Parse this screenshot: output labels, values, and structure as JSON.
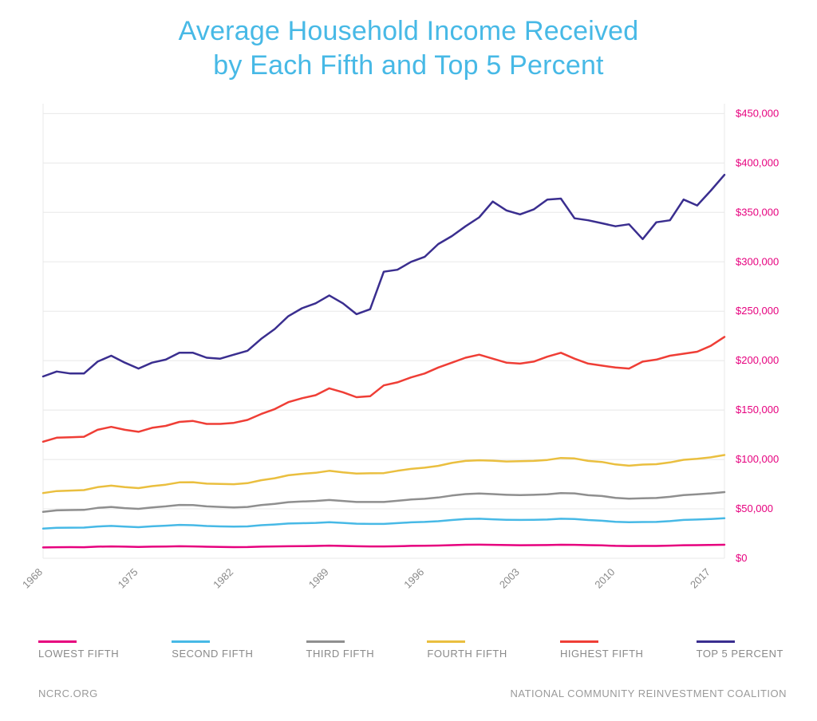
{
  "title_line1": "Average Household Income Received",
  "title_line2": "by Each Fifth and Top 5 Percent",
  "title_color": "#47b9e6",
  "footer_left": "NCRC.ORG",
  "footer_right": "NATIONAL COMMUNITY REINVESTMENT COALITION",
  "chart": {
    "type": "line",
    "background_color": "#ffffff",
    "grid_color": "#e8e8e8",
    "axis_label_color": "#8a8a8a",
    "ytick_color": "#e6007e",
    "title_fontsize": 34,
    "axis_fontsize": 13,
    "line_width": 2.5,
    "x": {
      "min": 1968,
      "max": 2018,
      "ticks": [
        1968,
        1975,
        1982,
        1989,
        1996,
        2003,
        2010,
        2017
      ],
      "tick_labels": [
        "1968",
        "1975",
        "1982",
        "1989",
        "1996",
        "2003",
        "2010",
        "2017"
      ],
      "tick_rotation": -45
    },
    "y": {
      "min": 0,
      "max": 460000,
      "ticks": [
        0,
        50000,
        100000,
        150000,
        200000,
        250000,
        300000,
        350000,
        400000,
        450000
      ],
      "tick_labels": [
        "$0",
        "$50,000",
        "$100,000",
        "$150,000",
        "$200,000",
        "$250,000",
        "$300,000",
        "$350,000",
        "$400,000",
        "$450,000"
      ]
    },
    "years": [
      1968,
      1969,
      1970,
      1971,
      1972,
      1973,
      1974,
      1975,
      1976,
      1977,
      1978,
      1979,
      1980,
      1981,
      1982,
      1983,
      1984,
      1985,
      1986,
      1987,
      1988,
      1989,
      1990,
      1991,
      1992,
      1993,
      1994,
      1995,
      1996,
      1997,
      1998,
      1999,
      2000,
      2001,
      2002,
      2003,
      2004,
      2005,
      2006,
      2007,
      2008,
      2009,
      2010,
      2011,
      2012,
      2013,
      2014,
      2015,
      2016,
      2017,
      2018
    ],
    "series": [
      {
        "id": "lowest_fifth",
        "label": "LOWEST FIFTH",
        "color": "#e6007e",
        "values": [
          11000,
          11200,
          11300,
          11200,
          11800,
          12000,
          11800,
          11500,
          11800,
          11900,
          12200,
          12000,
          11700,
          11500,
          11300,
          11400,
          11800,
          12000,
          12200,
          12300,
          12500,
          12800,
          12500,
          12200,
          12000,
          12000,
          12200,
          12600,
          12700,
          12900,
          13300,
          13700,
          13800,
          13600,
          13400,
          13200,
          13300,
          13400,
          13700,
          13600,
          13300,
          13100,
          12600,
          12400,
          12500,
          12500,
          12800,
          13200,
          13300,
          13500,
          13700
        ]
      },
      {
        "id": "second_fifth",
        "label": "SECOND FIFTH",
        "color": "#47b9e6",
        "values": [
          30000,
          30800,
          31000,
          31100,
          32200,
          32800,
          32000,
          31500,
          32400,
          33000,
          33800,
          33500,
          32700,
          32300,
          32000,
          32300,
          33500,
          34200,
          35200,
          35500,
          35800,
          36500,
          35800,
          35000,
          34800,
          34800,
          35600,
          36400,
          36800,
          37500,
          38700,
          39700,
          40000,
          39500,
          39000,
          38800,
          39000,
          39200,
          40000,
          39800,
          38700,
          38000,
          37000,
          36500,
          36700,
          36800,
          37600,
          38800,
          39200,
          39800,
          40500
        ]
      },
      {
        "id": "third_fifth",
        "label": "THIRD FIFTH",
        "color": "#8f8f8f",
        "values": [
          47000,
          48500,
          48800,
          49000,
          51000,
          52000,
          50800,
          50000,
          51500,
          52500,
          54000,
          53800,
          52500,
          52000,
          51500,
          52000,
          53800,
          55000,
          56800,
          57500,
          58000,
          59000,
          58000,
          57000,
          57000,
          57000,
          58200,
          59500,
          60200,
          61500,
          63500,
          65000,
          65500,
          65000,
          64200,
          64000,
          64200,
          64700,
          66000,
          65700,
          63800,
          63000,
          61200,
          60300,
          60800,
          61000,
          62200,
          64000,
          64700,
          65700,
          67000
        ]
      },
      {
        "id": "fourth_fifth",
        "label": "FOURTH FIFTH",
        "color": "#eabf3f",
        "values": [
          66000,
          68000,
          68500,
          69000,
          72000,
          73500,
          72000,
          71000,
          73000,
          74500,
          76800,
          77000,
          75500,
          75200,
          75000,
          76000,
          79000,
          81000,
          84000,
          85500,
          86500,
          88500,
          87000,
          85800,
          86000,
          86200,
          88500,
          90500,
          91700,
          93500,
          96500,
          98500,
          99200,
          98800,
          98000,
          98200,
          98500,
          99500,
          101500,
          101000,
          98500,
          97500,
          95000,
          93700,
          94800,
          95200,
          97000,
          99700,
          100700,
          102200,
          104500
        ]
      },
      {
        "id": "highest_fifth",
        "label": "HIGHEST FIFTH",
        "color": "#ef3e36",
        "values": [
          118000,
          122000,
          122500,
          123000,
          130000,
          133000,
          130000,
          128000,
          132000,
          134000,
          138000,
          139000,
          136000,
          136000,
          137000,
          140000,
          146000,
          151000,
          158000,
          162000,
          165000,
          172000,
          168000,
          163000,
          164000,
          175000,
          178000,
          183000,
          187000,
          193000,
          198000,
          203000,
          206000,
          202000,
          198000,
          197000,
          199000,
          204000,
          208000,
          202000,
          197000,
          195000,
          193000,
          192000,
          199000,
          201000,
          205000,
          207000,
          209000,
          215000,
          224000
        ]
      },
      {
        "id": "top_5_percent",
        "label": "TOP 5 PERCENT",
        "color": "#3a2e8f",
        "values": [
          184000,
          189000,
          187000,
          187000,
          199000,
          205000,
          198000,
          192000,
          198000,
          201000,
          208000,
          208000,
          203000,
          202000,
          206000,
          210000,
          222000,
          232000,
          245000,
          253000,
          258000,
          266000,
          258000,
          247000,
          252000,
          290000,
          292000,
          300000,
          305000,
          318000,
          326000,
          336000,
          345000,
          361000,
          352000,
          348000,
          353000,
          363000,
          364000,
          344000,
          342000,
          339000,
          336000,
          338000,
          323000,
          340000,
          342000,
          363000,
          357000,
          372000,
          388000
        ]
      }
    ],
    "legend": {
      "position": "bottom",
      "label_color": "#8a8a8a",
      "swatch_width": 48,
      "swatch_height": 3,
      "fontsize": 13
    }
  }
}
